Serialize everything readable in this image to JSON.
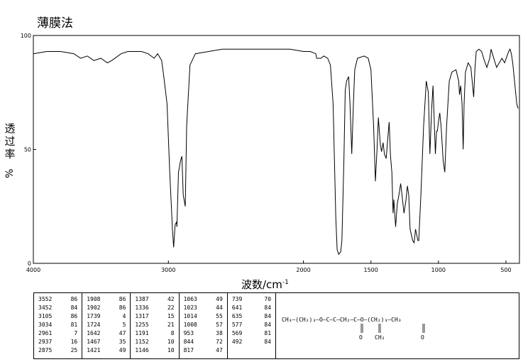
{
  "chart_data": {
    "type": "line",
    "title": "薄膜法",
    "ylabel_chars": [
      "透",
      "过",
      "率"
    ],
    "ylabel_unit": "%",
    "xlabel": "波数/cm",
    "xlabel_sup": "-1",
    "xlim": [
      4000,
      400
    ],
    "ylim": [
      0,
      100
    ],
    "x_ticks": [
      4000,
      3000,
      2000,
      1500,
      1000,
      500
    ],
    "y_ticks": [
      0,
      50,
      100
    ],
    "grid": false,
    "points": [
      [
        4000,
        92
      ],
      [
        3900,
        93
      ],
      [
        3800,
        93
      ],
      [
        3700,
        92
      ],
      [
        3650,
        90
      ],
      [
        3600,
        91
      ],
      [
        3552,
        89
      ],
      [
        3500,
        90
      ],
      [
        3452,
        88
      ],
      [
        3420,
        89
      ],
      [
        3350,
        92
      ],
      [
        3300,
        93
      ],
      [
        3200,
        93
      ],
      [
        3150,
        92
      ],
      [
        3105,
        90
      ],
      [
        3080,
        92
      ],
      [
        3050,
        89
      ],
      [
        3034,
        82
      ],
      [
        3010,
        70
      ],
      [
        2990,
        40
      ],
      [
        2970,
        15
      ],
      [
        2961,
        7
      ],
      [
        2950,
        17
      ],
      [
        2940,
        18
      ],
      [
        2937,
        16
      ],
      [
        2925,
        40
      ],
      [
        2910,
        45
      ],
      [
        2900,
        47
      ],
      [
        2890,
        30
      ],
      [
        2875,
        25
      ],
      [
        2865,
        60
      ],
      [
        2840,
        87
      ],
      [
        2800,
        92
      ],
      [
        2700,
        93
      ],
      [
        2600,
        94
      ],
      [
        2500,
        94
      ],
      [
        2400,
        94
      ],
      [
        2300,
        94
      ],
      [
        2200,
        94
      ],
      [
        2100,
        94
      ],
      [
        2000,
        93
      ],
      [
        1950,
        93
      ],
      [
        1908,
        92
      ],
      [
        1902,
        90
      ],
      [
        1870,
        90
      ],
      [
        1850,
        91
      ],
      [
        1820,
        90
      ],
      [
        1800,
        87
      ],
      [
        1780,
        70
      ],
      [
        1760,
        20
      ],
      [
        1750,
        6
      ],
      [
        1739,
        4
      ],
      [
        1724,
        5
      ],
      [
        1715,
        10
      ],
      [
        1700,
        45
      ],
      [
        1690,
        76
      ],
      [
        1680,
        80
      ],
      [
        1665,
        82
      ],
      [
        1655,
        70
      ],
      [
        1642,
        48
      ],
      [
        1630,
        70
      ],
      [
        1620,
        85
      ],
      [
        1600,
        90
      ],
      [
        1550,
        91
      ],
      [
        1520,
        90
      ],
      [
        1500,
        85
      ],
      [
        1480,
        60
      ],
      [
        1467,
        36
      ],
      [
        1455,
        50
      ],
      [
        1445,
        64
      ],
      [
        1430,
        52
      ],
      [
        1421,
        49
      ],
      [
        1410,
        53
      ],
      [
        1400,
        48
      ],
      [
        1387,
        46
      ],
      [
        1375,
        55
      ],
      [
        1365,
        62
      ],
      [
        1355,
        47
      ],
      [
        1345,
        40
      ],
      [
        1336,
        22
      ],
      [
        1330,
        28
      ],
      [
        1317,
        16
      ],
      [
        1305,
        26
      ],
      [
        1290,
        31
      ],
      [
        1280,
        35
      ],
      [
        1270,
        30
      ],
      [
        1255,
        22
      ],
      [
        1240,
        28
      ],
      [
        1230,
        34
      ],
      [
        1220,
        30
      ],
      [
        1210,
        15
      ],
      [
        1191,
        10
      ],
      [
        1180,
        9
      ],
      [
        1170,
        15
      ],
      [
        1152,
        10
      ],
      [
        1146,
        10
      ],
      [
        1130,
        30
      ],
      [
        1110,
        60
      ],
      [
        1090,
        80
      ],
      [
        1075,
        75
      ],
      [
        1063,
        48
      ],
      [
        1050,
        68
      ],
      [
        1040,
        78
      ],
      [
        1023,
        48
      ],
      [
        1014,
        58
      ],
      [
        1008,
        58
      ],
      [
        1000,
        62
      ],
      [
        990,
        66
      ],
      [
        980,
        60
      ],
      [
        965,
        45
      ],
      [
        953,
        40
      ],
      [
        940,
        60
      ],
      [
        920,
        80
      ],
      [
        900,
        84
      ],
      [
        870,
        85
      ],
      [
        850,
        80
      ],
      [
        844,
        74
      ],
      [
        835,
        78
      ],
      [
        825,
        70
      ],
      [
        817,
        50
      ],
      [
        810,
        70
      ],
      [
        800,
        84
      ],
      [
        780,
        88
      ],
      [
        760,
        86
      ],
      [
        750,
        80
      ],
      [
        739,
        73
      ],
      [
        730,
        85
      ],
      [
        720,
        93
      ],
      [
        700,
        94
      ],
      [
        680,
        93
      ],
      [
        660,
        89
      ],
      [
        641,
        86
      ],
      [
        620,
        90
      ],
      [
        610,
        94
      ],
      [
        600,
        92
      ],
      [
        580,
        88
      ],
      [
        569,
        86
      ],
      [
        560,
        87
      ],
      [
        530,
        90
      ],
      [
        510,
        88
      ],
      [
        492,
        91
      ],
      [
        480,
        93
      ],
      [
        470,
        94
      ],
      [
        460,
        92
      ],
      [
        450,
        88
      ],
      [
        440,
        82
      ],
      [
        430,
        76
      ],
      [
        420,
        70
      ],
      [
        410,
        68
      ]
    ],
    "peak_table": [
      [
        [
          "3552",
          "86"
        ],
        [
          "3452",
          "84"
        ],
        [
          "3105",
          "86"
        ],
        [
          "3034",
          "81"
        ],
        [
          "2961",
          "7"
        ],
        [
          "2937",
          "16"
        ],
        [
          "2875",
          "25"
        ]
      ],
      [
        [
          "1908",
          "86"
        ],
        [
          "1902",
          "86"
        ],
        [
          "1739",
          "4"
        ],
        [
          "1724",
          "5"
        ],
        [
          "1642",
          "47"
        ],
        [
          "1467",
          "35"
        ],
        [
          "1421",
          "49"
        ]
      ],
      [
        [
          "1387",
          "42"
        ],
        [
          "1336",
          "22"
        ],
        [
          "1317",
          "15"
        ],
        [
          "1255",
          "21"
        ],
        [
          "1191",
          "8"
        ],
        [
          "1152",
          "10"
        ],
        [
          "1146",
          "10"
        ]
      ],
      [
        [
          "1063",
          "49"
        ],
        [
          "1023",
          "44"
        ],
        [
          "1014",
          "55"
        ],
        [
          "1008",
          "57"
        ],
        [
          "953",
          "38"
        ],
        [
          "844",
          "72"
        ],
        [
          "817",
          "47"
        ]
      ],
      [
        [
          "739",
          "70"
        ],
        [
          "641",
          "84"
        ],
        [
          "635",
          "84"
        ],
        [
          "577",
          "84"
        ],
        [
          "569",
          "81"
        ],
        [
          "492",
          "84"
        ]
      ]
    ],
    "structure": {
      "left_chain": "CH₃—(CH₂)₃—O—C—C—CH₂—C—O—(CH₂)₃—CH₃",
      "o1": "O",
      "ch2": "CH₂",
      "o2": "O"
    }
  }
}
